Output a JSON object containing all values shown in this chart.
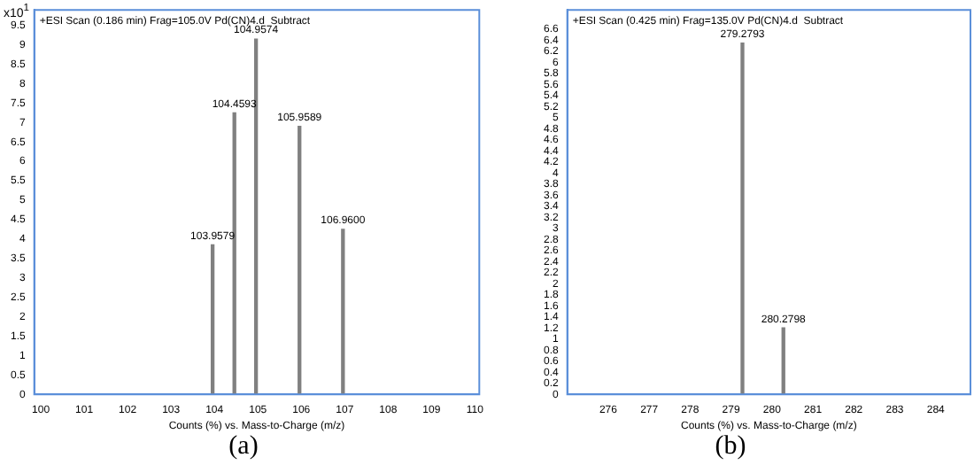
{
  "chart_data": [
    {
      "type": "bar",
      "title": "+ESI Scan (0.186 min) Frag=105.0V Pd(CN)4.d  Subtract",
      "xlabel": "Counts (%) vs. Mass-to-Charge (m/z)",
      "ylabel": "x10$^{1}$",
      "annotations": [
        "(a)",
        {
          "text": "103.9579",
          "x": 103.9579,
          "y": 3.85
        },
        {
          "text": "104.4593",
          "x": 104.4593,
          "y": 7.25
        },
        {
          "text": "104.9574",
          "x": 104.9574,
          "y": 9.15
        },
        {
          "text": "105.9589",
          "x": 105.9589,
          "y": 6.9
        },
        {
          "text": "106.9600",
          "x": 106.96,
          "y": 4.25
        }
      ],
      "x": [
        103.9579,
        104.4593,
        104.9574,
        105.9589,
        106.96
      ],
      "series": [
        {
          "color": "#808080",
          "values": [
            3.85,
            7.25,
            9.15,
            6.9,
            4.25
          ]
        }
      ],
      "xlim": [
        99.85,
        110.1
      ],
      "xticks": [
        100,
        101,
        102,
        103,
        104,
        105,
        106,
        107,
        108,
        109,
        110
      ],
      "ylim": [
        0,
        9.9
      ],
      "yticks": [
        0,
        0.5,
        1,
        1.5,
        2,
        2.5,
        3,
        3.5,
        4,
        4.5,
        5,
        5.5,
        6,
        6.5,
        7,
        7.5,
        8,
        8.5,
        9,
        9.5
      ],
      "grid": false,
      "legend": false
    },
    {
      "type": "bar",
      "title": "+ESI Scan (0.425 min) Frag=135.0V Pd(CN)4.d  Subtract",
      "xlabel": "Counts (%) vs. Mass-to-Charge (m/z)",
      "annotations": [
        "(b)",
        {
          "text": "279.2793",
          "x": 279.2793,
          "y": 6.35
        },
        {
          "text": "280.2798",
          "x": 280.2798,
          "y": 1.2
        }
      ],
      "x": [
        279.2793,
        280.2798
      ],
      "series": [
        {
          "color": "#808080",
          "values": [
            6.35,
            1.2
          ]
        }
      ],
      "xlim": [
        275,
        284.85
      ],
      "xticks": [
        276,
        277,
        278,
        279,
        280,
        281,
        282,
        283,
        284
      ],
      "ylim": [
        0,
        6.95
      ],
      "yticks": [
        0,
        0.2,
        0.4,
        0.6,
        0.8,
        1,
        1.2,
        1.4,
        1.6,
        1.8,
        2,
        2.2,
        2.4,
        2.6,
        2.8,
        3,
        3.2,
        3.4,
        3.6,
        3.8,
        4,
        4.2,
        4.4,
        4.6,
        4.8,
        5,
        5.2,
        5.4,
        5.6,
        5.8,
        6,
        6.2,
        6.4,
        6.6
      ],
      "grid": false,
      "legend": false
    }
  ]
}
